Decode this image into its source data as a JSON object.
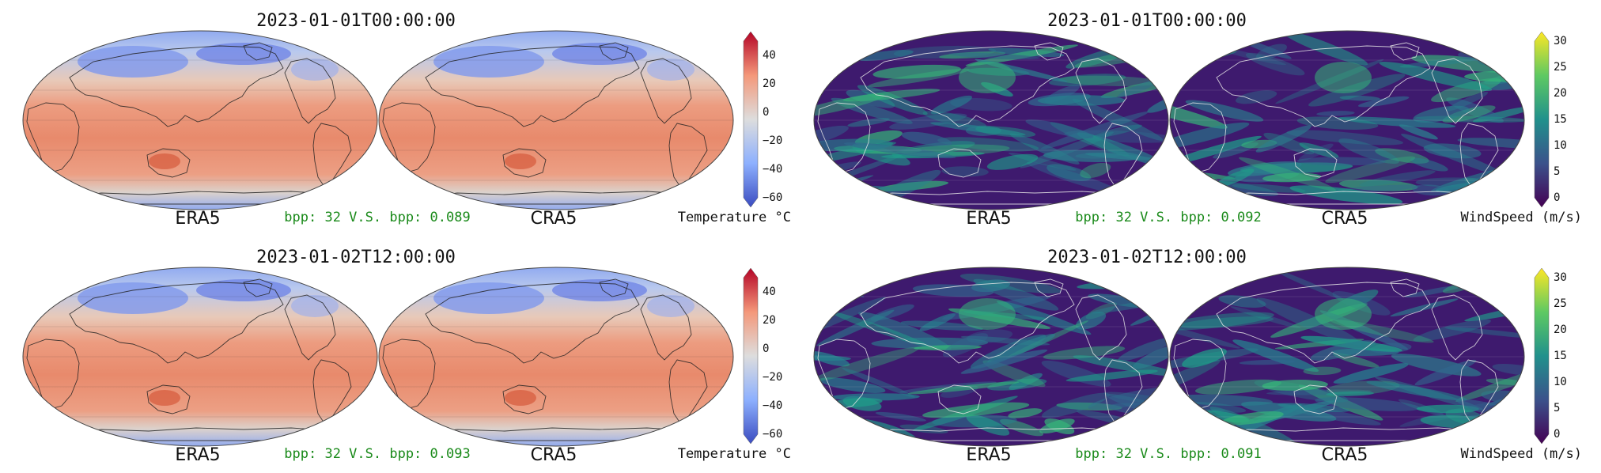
{
  "panels": [
    {
      "variable": "temperature",
      "timestamp": "2023-01-01T00:00:00",
      "left_label": "ERA5",
      "right_label": "CRA5",
      "bpp_text": "bpp: 32 V.S. bpp: 0.089",
      "unit_label": "Temperature °C",
      "colorbar_ticks": [
        "40",
        "20",
        "0",
        "−20",
        "−40",
        "−60"
      ]
    },
    {
      "variable": "wind",
      "timestamp": "2023-01-01T00:00:00",
      "left_label": "ERA5",
      "right_label": "CRA5",
      "bpp_text": "bpp: 32 V.S. bpp: 0.092",
      "unit_label": "WindSpeed (m/s)",
      "colorbar_ticks": [
        "30",
        "25",
        "20",
        "15",
        "10",
        "5",
        "0"
      ]
    },
    {
      "variable": "temperature",
      "timestamp": "2023-01-02T12:00:00",
      "left_label": "ERA5",
      "right_label": "CRA5",
      "bpp_text": "bpp: 32 V.S. bpp: 0.093",
      "unit_label": "Temperature °C",
      "colorbar_ticks": [
        "40",
        "20",
        "0",
        "−20",
        "−40",
        "−60"
      ]
    },
    {
      "variable": "wind",
      "timestamp": "2023-01-02T12:00:00",
      "left_label": "ERA5",
      "right_label": "CRA5",
      "bpp_text": "bpp: 32 V.S. bpp: 0.091",
      "unit_label": "WindSpeed (m/s)",
      "colorbar_ticks": [
        "30",
        "25",
        "20",
        "15",
        "10",
        "5",
        "0"
      ]
    }
  ],
  "colormaps": {
    "temperature": {
      "name": "coolwarm",
      "range": [
        -60,
        50
      ],
      "stops": [
        "#3b4cc0",
        "#8db0fe",
        "#dddddd",
        "#f4987a",
        "#b40426"
      ]
    },
    "wind": {
      "name": "viridis",
      "range": [
        0,
        30
      ],
      "stops": [
        "#440154",
        "#3b528b",
        "#21918c",
        "#5ec962",
        "#fde725"
      ]
    }
  }
}
